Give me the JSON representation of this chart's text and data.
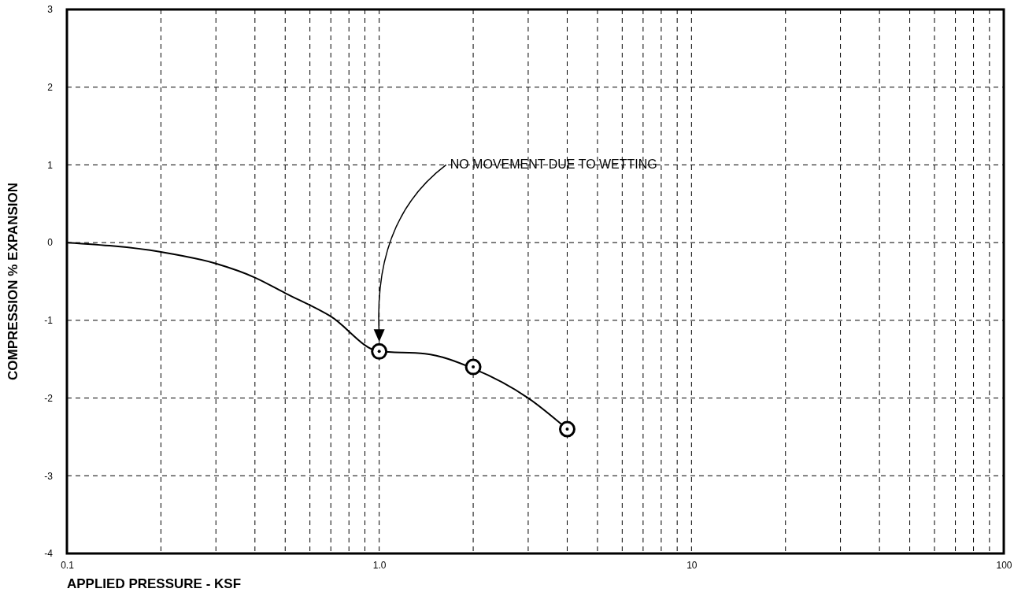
{
  "chart_data": {
    "type": "line",
    "xlabel": "APPLIED PRESSURE - KSF",
    "ylabel": "COMPRESSION % EXPANSION",
    "log": "x",
    "xlim": [
      0.1,
      100
    ],
    "ylim": [
      -4,
      3
    ],
    "xticks": [
      0.1,
      {
        "value": 0.2,
        "label": null
      },
      {
        "value": 0.3,
        "label": null
      },
      {
        "value": 0.4,
        "label": null
      },
      {
        "value": 0.5,
        "label": null
      },
      {
        "value": 0.6,
        "label": null
      },
      {
        "value": 0.7,
        "label": null
      },
      {
        "value": 0.8,
        "label": null
      },
      {
        "value": 0.9,
        "label": null
      },
      {
        "value": 1,
        "label": "1.0"
      },
      {
        "value": 2,
        "label": null
      },
      {
        "value": 3,
        "label": null
      },
      {
        "value": 4,
        "label": null
      },
      {
        "value": 5,
        "label": null
      },
      {
        "value": 6,
        "label": null
      },
      {
        "value": 7,
        "label": null
      },
      {
        "value": 8,
        "label": null
      },
      {
        "value": 9,
        "label": null
      },
      10,
      {
        "value": 20,
        "label": null
      },
      {
        "value": 30,
        "label": null
      },
      {
        "value": 40,
        "label": null
      },
      {
        "value": 50,
        "label": null
      },
      {
        "value": 60,
        "label": null
      },
      {
        "value": 70,
        "label": null
      },
      {
        "value": 80,
        "label": null
      },
      {
        "value": 90,
        "label": null
      },
      100
    ],
    "yticks": [
      -4,
      -3,
      -2,
      -1,
      0,
      1,
      2,
      3
    ],
    "grid": true,
    "series": [
      {
        "type": "line",
        "color": "#000000",
        "marker": "none",
        "line_style": "solid",
        "x": [
          0.1,
          0.2,
          0.3,
          0.4,
          0.5,
          0.7,
          1,
          1.4,
          2,
          3,
          4
        ],
        "values": [
          0,
          -0.12,
          -0.27,
          -0.45,
          -0.65,
          -0.95,
          -1.4,
          -1.43,
          -1.62,
          -2.0,
          -2.4
        ]
      },
      {
        "type": "scatter",
        "color": "#000000",
        "marker": "circle",
        "x": [
          1,
          2,
          4
        ],
        "values": [
          -1.4,
          -1.6,
          -2.4
        ]
      }
    ],
    "annotations": [
      "NO MOVEMENT DUE TO WETTING"
    ]
  }
}
